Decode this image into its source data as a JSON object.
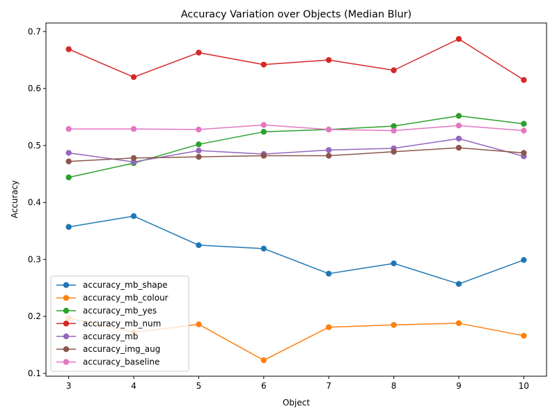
{
  "chart_data": {
    "type": "line",
    "title": "Accuracy Variation over Objects (Median Blur)",
    "xlabel": "Object",
    "ylabel": "Accuracy",
    "x": [
      3,
      4,
      5,
      6,
      7,
      8,
      9,
      10
    ],
    "xlim": [
      2.65,
      10.35
    ],
    "ylim": [
      0.095,
      0.715
    ],
    "xticks": [
      "3",
      "4",
      "5",
      "6",
      "7",
      "8",
      "9",
      "10"
    ],
    "yticks": [
      "0.1",
      "0.2",
      "0.3",
      "0.4",
      "0.5",
      "0.6",
      "0.7"
    ],
    "ytick_values": [
      0.1,
      0.2,
      0.3,
      0.4,
      0.5,
      0.6,
      0.7
    ],
    "grid": false,
    "legend_position": "lower-left",
    "series": [
      {
        "name": "accuracy_mb_shape",
        "color": "#1f77b4",
        "values": [
          0.357,
          0.376,
          0.325,
          0.319,
          0.275,
          0.293,
          0.257,
          0.299
        ]
      },
      {
        "name": "accuracy_mb_colour",
        "color": "#ff7f0e",
        "values": [
          0.197,
          0.172,
          0.186,
          0.123,
          0.181,
          0.185,
          0.188,
          0.166
        ]
      },
      {
        "name": "accuracy_mb_yes",
        "color": "#2ca02c",
        "values": [
          0.444,
          0.469,
          0.502,
          0.524,
          0.528,
          0.534,
          0.552,
          0.538
        ]
      },
      {
        "name": "accuracy_mb_num",
        "color": "#d62728",
        "values": [
          0.669,
          0.62,
          0.663,
          0.642,
          0.65,
          0.632,
          0.687,
          0.615
        ]
      },
      {
        "name": "accuracy_mb",
        "color": "#9467bd",
        "values": [
          0.487,
          0.471,
          0.491,
          0.485,
          0.492,
          0.495,
          0.512,
          0.481
        ]
      },
      {
        "name": "accuracy_img_aug",
        "color": "#8c564b",
        "values": [
          0.472,
          0.478,
          0.48,
          0.482,
          0.482,
          0.489,
          0.496,
          0.487
        ]
      },
      {
        "name": "accuracy_baseline",
        "color": "#e377c2",
        "values": [
          0.529,
          0.529,
          0.528,
          0.536,
          0.528,
          0.526,
          0.535,
          0.526
        ]
      }
    ]
  }
}
